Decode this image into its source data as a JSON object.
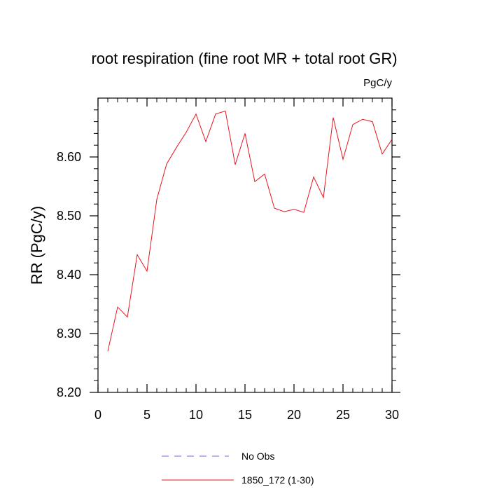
{
  "chart_data": {
    "type": "line",
    "title": "root respiration (fine root MR + total root GR)",
    "units_label": "PgC/y",
    "ylabel": "RR  (PgC/y)",
    "xlabel": "",
    "xlim": [
      0,
      30
    ],
    "ylim": [
      8.2,
      8.7
    ],
    "x_ticks": [
      0,
      5,
      10,
      15,
      20,
      25,
      30
    ],
    "x_tick_labels": [
      "0",
      "5",
      "10",
      "15",
      "20",
      "25",
      "30"
    ],
    "y_ticks": [
      8.2,
      8.3,
      8.4,
      8.5,
      8.6
    ],
    "y_tick_labels": [
      "8.20",
      "8.30",
      "8.40",
      "8.50",
      "8.60"
    ],
    "grid": false,
    "legend_position": "bottom",
    "series": [
      {
        "name": "No Obs",
        "color": "#6a6ae0",
        "style": "dashed",
        "x": [],
        "values": []
      },
      {
        "name": "1850_172 (1-30)",
        "color": "#e8141e",
        "style": "solid",
        "x": [
          1,
          2,
          3,
          4,
          5,
          6,
          7,
          8,
          9,
          10,
          11,
          12,
          13,
          14,
          15,
          16,
          17,
          18,
          19,
          20,
          21,
          22,
          23,
          24,
          25,
          26,
          27,
          28,
          29,
          30
        ],
        "values": [
          8.27,
          8.345,
          8.328,
          8.434,
          8.406,
          8.528,
          8.588,
          8.616,
          8.642,
          8.673,
          8.626,
          8.673,
          8.678,
          8.587,
          8.64,
          8.558,
          8.571,
          8.513,
          8.507,
          8.511,
          8.506,
          8.566,
          8.531,
          8.667,
          8.596,
          8.655,
          8.664,
          8.66,
          8.605,
          8.63
        ]
      }
    ]
  }
}
